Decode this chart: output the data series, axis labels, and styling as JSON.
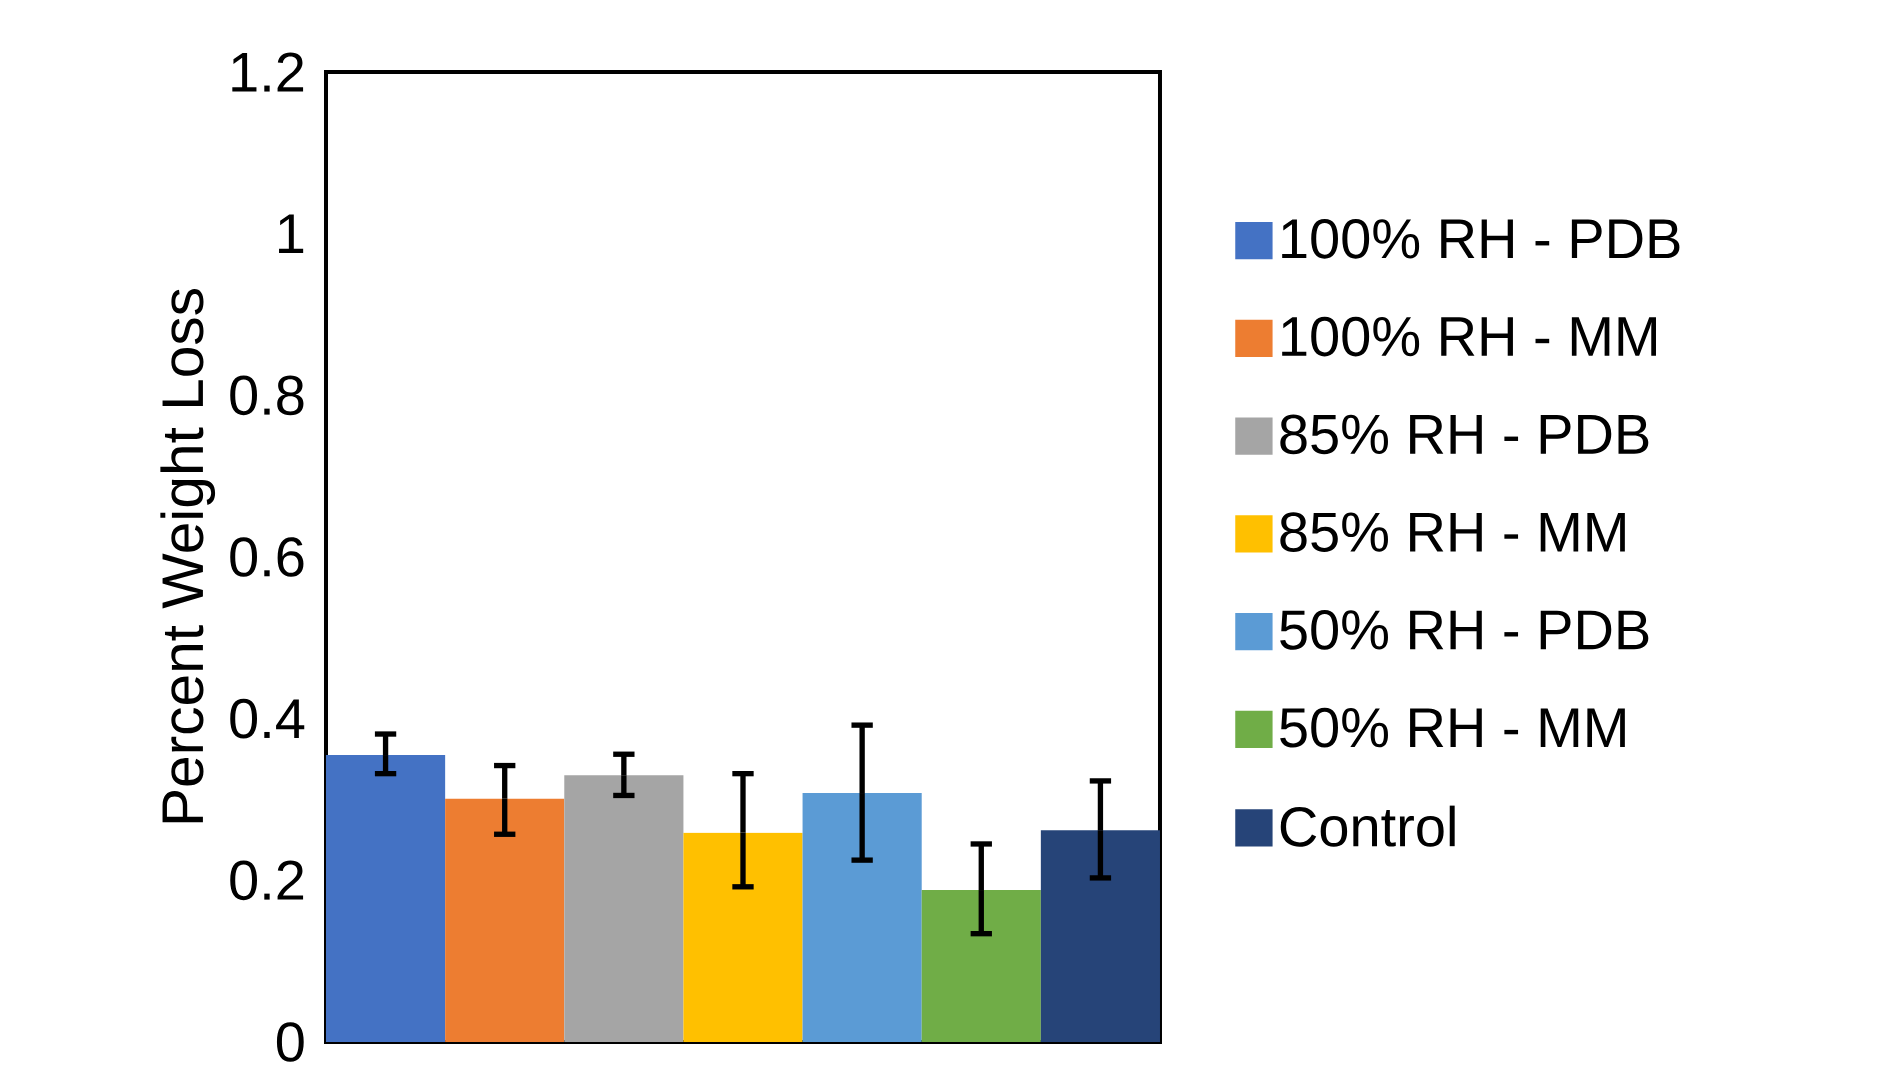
{
  "chart_data": {
    "type": "bar",
    "ylabel": "Percent Weight Loss",
    "categories": [
      null
    ],
    "ylim": [
      0,
      1.2
    ],
    "yticks": [
      0,
      0.2,
      0.4,
      0.6,
      0.8,
      1,
      1.2
    ],
    "grid": false,
    "legend": "right",
    "series": [
      {
        "name": "100% RH - PDB",
        "color": "#4472c4",
        "values": [
          0.355
        ],
        "errors": [
          [
            0.332,
            0.381
          ]
        ]
      },
      {
        "name": "100% RH - MM",
        "color": "#ed7d31",
        "values": [
          0.301
        ],
        "errors": [
          [
            0.257,
            0.342
          ]
        ]
      },
      {
        "name": "85% RH - PDB",
        "color": "#a5a5a5",
        "values": [
          0.33
        ],
        "errors": [
          [
            0.305,
            0.356
          ]
        ]
      },
      {
        "name": "85% RH - MM",
        "color": "#ffc000",
        "values": [
          0.259
        ],
        "errors": [
          [
            0.192,
            0.332
          ]
        ]
      },
      {
        "name": "50% RH - PDB",
        "color": "#5b9bd5",
        "values": [
          0.308
        ],
        "errors": [
          [
            0.225,
            0.392
          ]
        ]
      },
      {
        "name": "50% RH - MM",
        "color": "#70ad47",
        "values": [
          0.188
        ],
        "errors": [
          [
            0.134,
            0.245
          ]
        ]
      },
      {
        "name": "Control",
        "color": "#264478",
        "values": [
          0.262
        ],
        "errors": [
          [
            0.203,
            0.323
          ]
        ]
      }
    ]
  }
}
